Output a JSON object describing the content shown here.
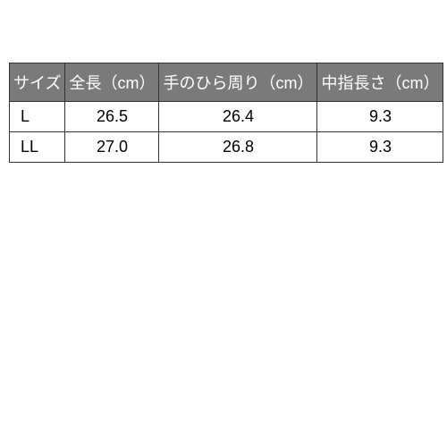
{
  "table": {
    "type": "table",
    "background_color": "#ffffff",
    "header_bg": "#7a7a7a",
    "header_fg": "#ffffff",
    "border_color": "#333333",
    "font_size": 18,
    "columns": [
      {
        "key": "size",
        "label": "サイズ",
        "width_pct": 17,
        "align": "left"
      },
      {
        "key": "length",
        "label": "全長（cm）",
        "width_pct": 25,
        "align": "center"
      },
      {
        "key": "palm",
        "label": "手のひら周り（cm）",
        "width_pct": 33,
        "align": "center"
      },
      {
        "key": "finger",
        "label": "中指長さ（cm）",
        "width_pct": 25,
        "align": "center"
      }
    ],
    "rows": [
      {
        "size": "L",
        "length": "26.5",
        "palm": "26.4",
        "finger": "9.3"
      },
      {
        "size": "LL",
        "length": "27.0",
        "palm": "26.8",
        "finger": "9.3"
      }
    ]
  }
}
